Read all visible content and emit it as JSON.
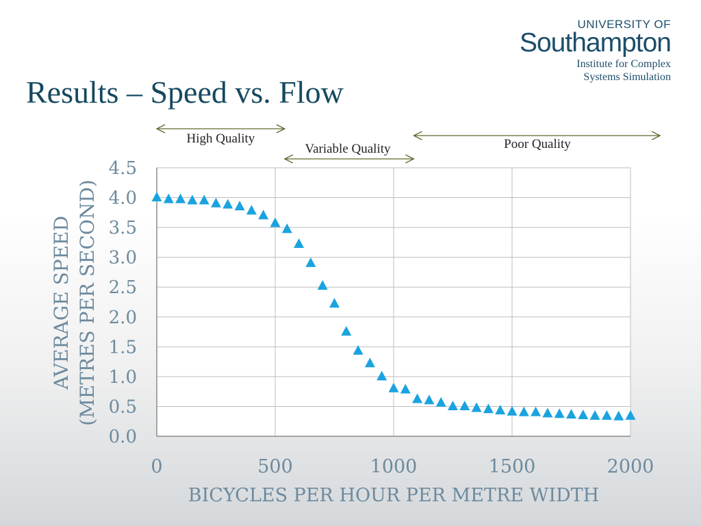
{
  "logo": {
    "university_of": "UNIVERSITY OF",
    "southampton": "Southampton"
  },
  "institute": {
    "line1": "Institute for Complex",
    "line2": "Systems Simulation"
  },
  "title": "Results – Speed vs. Flow",
  "regions": [
    {
      "label": "High Quality",
      "from": 0,
      "to": 540
    },
    {
      "label": "Variable Quality",
      "from": 540,
      "to": 1085
    },
    {
      "label": "Poor Quality",
      "from": 1085,
      "to": 2125
    }
  ],
  "chart_data": {
    "type": "scatter",
    "xlabel": "BICYCLES PER HOUR PER METRE WIDTH",
    "ylabel_line1": "AVERAGE SPEED",
    "ylabel_line2": "(METRES PER SECOND)",
    "xlim": [
      0,
      2000
    ],
    "ylim": [
      0,
      4.5
    ],
    "x_ticks": [
      "0",
      "500",
      "1000",
      "1500",
      "2000"
    ],
    "y_ticks": [
      "0.0",
      "0.5",
      "1.0",
      "1.5",
      "2.0",
      "2.5",
      "3.0",
      "3.5",
      "4.0",
      "4.5"
    ],
    "grid": true,
    "marker": "triangle",
    "marker_color": "#1aa3df",
    "points": [
      [
        0,
        4.0
      ],
      [
        50,
        3.97
      ],
      [
        100,
        3.97
      ],
      [
        150,
        3.95
      ],
      [
        200,
        3.95
      ],
      [
        250,
        3.9
      ],
      [
        300,
        3.88
      ],
      [
        350,
        3.85
      ],
      [
        400,
        3.78
      ],
      [
        450,
        3.7
      ],
      [
        500,
        3.57
      ],
      [
        550,
        3.47
      ],
      [
        600,
        3.22
      ],
      [
        650,
        2.9
      ],
      [
        700,
        2.52
      ],
      [
        750,
        2.22
      ],
      [
        800,
        1.75
      ],
      [
        850,
        1.43
      ],
      [
        900,
        1.22
      ],
      [
        950,
        1.0
      ],
      [
        1000,
        0.8
      ],
      [
        1050,
        0.78
      ],
      [
        1100,
        0.62
      ],
      [
        1150,
        0.6
      ],
      [
        1200,
        0.56
      ],
      [
        1250,
        0.5
      ],
      [
        1300,
        0.5
      ],
      [
        1350,
        0.47
      ],
      [
        1400,
        0.45
      ],
      [
        1450,
        0.43
      ],
      [
        1500,
        0.41
      ],
      [
        1550,
        0.4
      ],
      [
        1600,
        0.4
      ],
      [
        1650,
        0.38
      ],
      [
        1700,
        0.37
      ],
      [
        1750,
        0.36
      ],
      [
        1800,
        0.35
      ],
      [
        1850,
        0.34
      ],
      [
        1900,
        0.34
      ],
      [
        1950,
        0.33
      ],
      [
        2000,
        0.34
      ]
    ]
  }
}
